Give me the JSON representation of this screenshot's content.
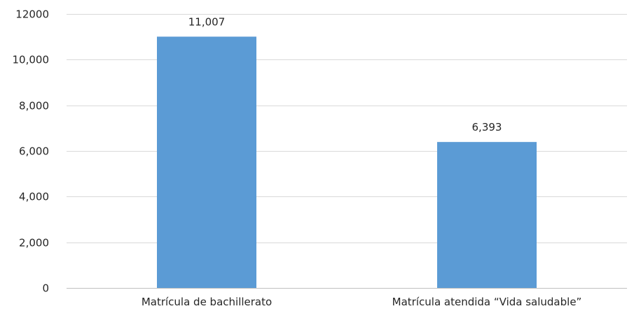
{
  "chart_data": {
    "type": "bar",
    "categories": [
      "Matrícula de bachillerato",
      "Matrícula atendida “Vida saludable”"
    ],
    "values": [
      11007,
      6393
    ],
    "value_labels": [
      "11,007",
      "6,393"
    ],
    "y_ticks": [
      0,
      2000,
      4000,
      6000,
      8000,
      10000,
      12000
    ],
    "y_tick_labels": [
      "0",
      "2,000",
      "4,000",
      "6,000",
      "8,000",
      "10,000",
      "12000"
    ],
    "ylim": [
      0,
      12000
    ],
    "grid": true,
    "legend": "none",
    "title": "",
    "xlabel": "",
    "ylabel": "",
    "bar_color": "#5b9bd5",
    "grid_color": "#d9d9d9",
    "text_color": "#262626"
  }
}
